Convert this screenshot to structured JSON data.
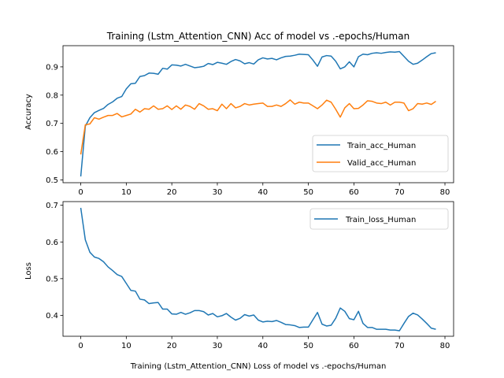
{
  "chart_data": [
    {
      "type": "line",
      "title": "Training (Lstm_Attention_CNN) Acc of model vs .-epochs/Human",
      "xlabel": "",
      "ylabel": "Accuracy",
      "xlim": [
        -3.9,
        81.9
      ],
      "ylim": [
        0.49,
        0.975
      ],
      "xticks": [
        0,
        10,
        20,
        30,
        40,
        50,
        60,
        70,
        80
      ],
      "yticks": [
        0.5,
        0.6,
        0.7,
        0.8,
        0.9
      ],
      "ytick_labels": [
        "0.5",
        "0.6",
        "0.7",
        "0.8",
        "0.9"
      ],
      "legend_position": "lower-right",
      "grid": false,
      "x": [
        0,
        1,
        2,
        3,
        4,
        5,
        6,
        7,
        8,
        9,
        10,
        11,
        12,
        13,
        14,
        15,
        16,
        17,
        18,
        19,
        20,
        21,
        22,
        23,
        24,
        25,
        26,
        27,
        28,
        29,
        30,
        31,
        32,
        33,
        34,
        35,
        36,
        37,
        38,
        39,
        40,
        41,
        42,
        43,
        44,
        45,
        46,
        47,
        48,
        49,
        50,
        51,
        52,
        53,
        54,
        55,
        56,
        57,
        58,
        59,
        60,
        61,
        62,
        63,
        64,
        65,
        66,
        67,
        68,
        69,
        70,
        71,
        72,
        73,
        74,
        75,
        76,
        77,
        78
      ],
      "series": [
        {
          "name": "Train_acc_Human",
          "color": "#1f77b4",
          "values": [
            0.512,
            0.69,
            0.72,
            0.738,
            0.746,
            0.753,
            0.767,
            0.776,
            0.789,
            0.795,
            0.822,
            0.84,
            0.842,
            0.866,
            0.869,
            0.878,
            0.877,
            0.874,
            0.895,
            0.892,
            0.907,
            0.906,
            0.903,
            0.909,
            0.903,
            0.897,
            0.899,
            0.902,
            0.912,
            0.908,
            0.916,
            0.913,
            0.909,
            0.919,
            0.926,
            0.921,
            0.911,
            0.915,
            0.91,
            0.925,
            0.932,
            0.928,
            0.93,
            0.925,
            0.932,
            0.937,
            0.938,
            0.941,
            0.945,
            0.944,
            0.943,
            0.924,
            0.902,
            0.935,
            0.94,
            0.938,
            0.92,
            0.893,
            0.9,
            0.918,
            0.9,
            0.936,
            0.945,
            0.943,
            0.948,
            0.95,
            0.948,
            0.951,
            0.953,
            0.952,
            0.954,
            0.937,
            0.92,
            0.909,
            0.913,
            0.924,
            0.936,
            0.947,
            0.95
          ]
        },
        {
          "name": "Valid_acc_Human",
          "color": "#ff7f0e",
          "values": [
            0.59,
            0.695,
            0.698,
            0.72,
            0.715,
            0.722,
            0.728,
            0.728,
            0.735,
            0.723,
            0.728,
            0.733,
            0.75,
            0.74,
            0.752,
            0.75,
            0.762,
            0.75,
            0.752,
            0.762,
            0.749,
            0.762,
            0.75,
            0.765,
            0.76,
            0.75,
            0.77,
            0.762,
            0.75,
            0.752,
            0.745,
            0.768,
            0.752,
            0.77,
            0.755,
            0.76,
            0.77,
            0.765,
            0.768,
            0.77,
            0.772,
            0.76,
            0.76,
            0.765,
            0.76,
            0.77,
            0.783,
            0.768,
            0.775,
            0.772,
            0.772,
            0.762,
            0.752,
            0.765,
            0.782,
            0.775,
            0.75,
            0.722,
            0.755,
            0.77,
            0.752,
            0.753,
            0.765,
            0.78,
            0.778,
            0.772,
            0.77,
            0.775,
            0.765,
            0.775,
            0.775,
            0.772,
            0.745,
            0.752,
            0.77,
            0.768,
            0.772,
            0.767,
            0.778
          ]
        }
      ]
    },
    {
      "type": "line",
      "title": "",
      "xlabel": "Training (Lstm_Attention_CNN) Loss of model vs .-epochs/Human",
      "ylabel": "Loss",
      "xlim": [
        -3.9,
        81.9
      ],
      "ylim": [
        0.343,
        0.71
      ],
      "xticks": [
        0,
        10,
        20,
        30,
        40,
        50,
        60,
        70,
        80
      ],
      "yticks": [
        0.4,
        0.5,
        0.6,
        0.7
      ],
      "ytick_labels": [
        "0.4",
        "0.5",
        "0.6",
        "0.7"
      ],
      "legend_position": "upper-right",
      "grid": false,
      "x": [
        0,
        1,
        2,
        3,
        4,
        5,
        6,
        7,
        8,
        9,
        10,
        11,
        12,
        13,
        14,
        15,
        16,
        17,
        18,
        19,
        20,
        21,
        22,
        23,
        24,
        25,
        26,
        27,
        28,
        29,
        30,
        31,
        32,
        33,
        34,
        35,
        36,
        37,
        38,
        39,
        40,
        41,
        42,
        43,
        44,
        45,
        46,
        47,
        48,
        49,
        50,
        51,
        52,
        53,
        54,
        55,
        56,
        57,
        58,
        59,
        60,
        61,
        62,
        63,
        64,
        65,
        66,
        67,
        68,
        69,
        70,
        71,
        72,
        73,
        74,
        75,
        76,
        77,
        78
      ],
      "series": [
        {
          "name": "Train_loss_Human",
          "color": "#1f77b4",
          "values": [
            0.693,
            0.606,
            0.572,
            0.559,
            0.555,
            0.546,
            0.532,
            0.522,
            0.511,
            0.506,
            0.487,
            0.468,
            0.466,
            0.444,
            0.442,
            0.432,
            0.434,
            0.435,
            0.417,
            0.417,
            0.404,
            0.403,
            0.408,
            0.403,
            0.407,
            0.413,
            0.413,
            0.41,
            0.401,
            0.405,
            0.396,
            0.399,
            0.405,
            0.395,
            0.387,
            0.392,
            0.402,
            0.398,
            0.401,
            0.387,
            0.382,
            0.384,
            0.383,
            0.386,
            0.381,
            0.375,
            0.374,
            0.372,
            0.367,
            0.368,
            0.368,
            0.388,
            0.408,
            0.376,
            0.371,
            0.373,
            0.392,
            0.42,
            0.411,
            0.391,
            0.388,
            0.411,
            0.378,
            0.367,
            0.367,
            0.362,
            0.362,
            0.362,
            0.36,
            0.36,
            0.358,
            0.378,
            0.397,
            0.406,
            0.401,
            0.39,
            0.378,
            0.365,
            0.362
          ]
        }
      ]
    }
  ]
}
